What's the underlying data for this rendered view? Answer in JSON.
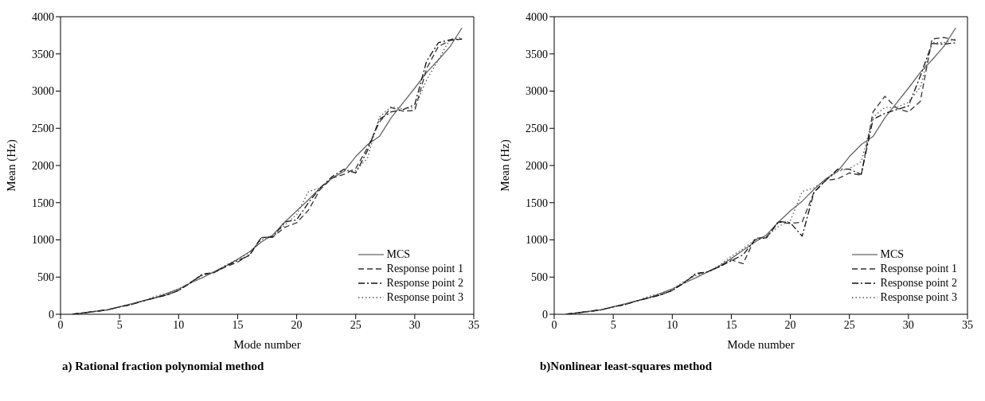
{
  "chart_data": [
    {
      "type": "line",
      "title": "a) Rational fraction polynomial method",
      "xlabel": "Mode number",
      "ylabel": "Mean (Hz)",
      "x": [
        1,
        2,
        3,
        4,
        5,
        6,
        7,
        8,
        9,
        10,
        11,
        12,
        13,
        14,
        15,
        16,
        17,
        18,
        19,
        20,
        21,
        22,
        23,
        24,
        25,
        26,
        27,
        28,
        29,
        30,
        31,
        32,
        33,
        34
      ],
      "xlim": [
        0,
        35
      ],
      "xticks": [
        0,
        5,
        10,
        15,
        20,
        25,
        30,
        35
      ],
      "ylim": [
        0,
        4000
      ],
      "yticks": [
        0,
        500,
        1000,
        1500,
        2000,
        2500,
        3000,
        3500,
        4000
      ],
      "legend": "bottom right",
      "marker": "none",
      "series": [
        {
          "name": "MCS",
          "color": "#666666",
          "line_style": "solid",
          "values": [
            0,
            20,
            40,
            60,
            100,
            140,
            180,
            220,
            280,
            340,
            420,
            490,
            570,
            650,
            740,
            840,
            970,
            1070,
            1240,
            1390,
            1540,
            1700,
            1830,
            1920,
            2120,
            2280,
            2390,
            2640,
            2840,
            3040,
            3250,
            3420,
            3600,
            3850
          ]
        },
        {
          "name": "Response point 1",
          "color": "#333333",
          "line_style": "dashed",
          "values": [
            0,
            20,
            40,
            60,
            100,
            130,
            180,
            220,
            260,
            320,
            430,
            530,
            560,
            640,
            700,
            800,
            1030,
            1040,
            1170,
            1230,
            1400,
            1680,
            1830,
            1880,
            1960,
            2240,
            2580,
            2780,
            2730,
            2740,
            3300,
            3600,
            3680,
            3700
          ]
        },
        {
          "name": "Response point 2",
          "color": "#111111",
          "line_style": "dashdot",
          "values": [
            0,
            20,
            40,
            60,
            100,
            130,
            180,
            220,
            260,
            320,
            420,
            540,
            560,
            650,
            720,
            790,
            1030,
            1040,
            1240,
            1270,
            1500,
            1700,
            1850,
            1950,
            1900,
            2200,
            2620,
            2720,
            2750,
            2820,
            3400,
            3650,
            3690,
            3700
          ]
        },
        {
          "name": "Response point 3",
          "color": "#555555",
          "line_style": "dotted",
          "values": [
            0,
            20,
            40,
            60,
            100,
            140,
            180,
            240,
            280,
            340,
            420,
            520,
            570,
            660,
            740,
            830,
            1000,
            1060,
            1200,
            1340,
            1650,
            1700,
            1830,
            1930,
            1930,
            2100,
            2650,
            2790,
            2760,
            2780,
            3150,
            3420,
            3700,
            3720
          ]
        }
      ]
    },
    {
      "type": "line",
      "title": "b)Nonlinear least-squares method",
      "xlabel": "Mode number",
      "ylabel": "Mean (Hz)",
      "x": [
        1,
        2,
        3,
        4,
        5,
        6,
        7,
        8,
        9,
        10,
        11,
        12,
        13,
        14,
        15,
        16,
        17,
        18,
        19,
        20,
        21,
        22,
        23,
        24,
        25,
        26,
        27,
        28,
        29,
        30,
        31,
        32,
        33,
        34
      ],
      "xlim": [
        0,
        35
      ],
      "xticks": [
        0,
        5,
        10,
        15,
        20,
        25,
        30,
        35
      ],
      "ylim": [
        0,
        4000
      ],
      "yticks": [
        0,
        500,
        1000,
        1500,
        2000,
        2500,
        3000,
        3500,
        4000
      ],
      "legend": "bottom right",
      "marker": "none",
      "series": [
        {
          "name": "MCS",
          "color": "#666666",
          "line_style": "solid",
          "values": [
            0,
            20,
            40,
            60,
            100,
            140,
            180,
            220,
            280,
            340,
            420,
            490,
            570,
            650,
            750,
            860,
            970,
            1070,
            1240,
            1390,
            1520,
            1680,
            1820,
            1920,
            2120,
            2280,
            2390,
            2640,
            2840,
            3040,
            3250,
            3420,
            3600,
            3850
          ]
        },
        {
          "name": "Response point 1",
          "color": "#333333",
          "line_style": "dashed",
          "values": [
            0,
            20,
            40,
            60,
            100,
            130,
            180,
            220,
            260,
            320,
            430,
            540,
            570,
            640,
            730,
            680,
            1020,
            1040,
            1240,
            1220,
            1240,
            1640,
            1800,
            1820,
            1900,
            1870,
            2720,
            2930,
            2770,
            2720,
            2860,
            3700,
            3720,
            3680
          ]
        },
        {
          "name": "Response point 2",
          "color": "#111111",
          "line_style": "dashdot",
          "values": [
            0,
            20,
            40,
            60,
            100,
            130,
            180,
            220,
            260,
            320,
            420,
            550,
            570,
            640,
            720,
            800,
            1000,
            1030,
            1250,
            1230,
            1050,
            1640,
            1800,
            1950,
            1950,
            1880,
            2620,
            2700,
            2750,
            2800,
            3200,
            3640,
            3630,
            3650
          ]
        },
        {
          "name": "Response point 3",
          "color": "#555555",
          "line_style": "dotted",
          "values": [
            0,
            20,
            40,
            60,
            100,
            140,
            180,
            240,
            280,
            340,
            440,
            520,
            570,
            660,
            780,
            880,
            1000,
            1050,
            1180,
            1260,
            1650,
            1700,
            1800,
            1920,
            1960,
            2050,
            2650,
            2780,
            2780,
            2850,
            3050,
            3650,
            3650,
            3700
          ]
        }
      ]
    }
  ]
}
